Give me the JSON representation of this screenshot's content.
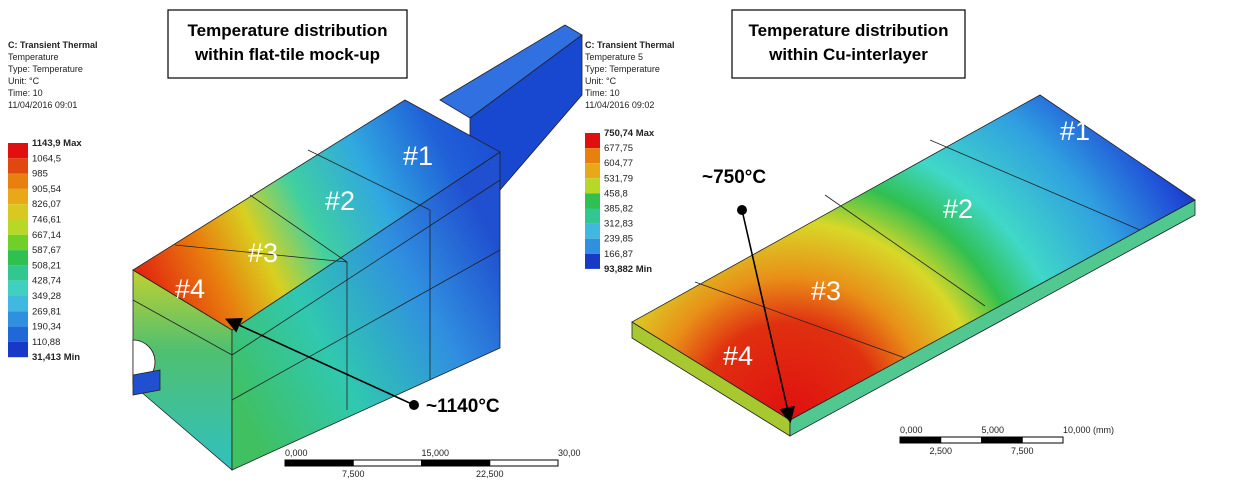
{
  "left": {
    "title": [
      "Temperature distribution",
      "within flat-tile mock-up"
    ],
    "legend_header": [
      "C: Transient Thermal",
      "Temperature",
      "Type: Temperature",
      "Unit: °C",
      "Time: 10",
      "11/04/2016 09:01"
    ],
    "legend_labels": [
      "1143,9 Max",
      "1064,5",
      "985",
      "905,54",
      "826,07",
      "746,61",
      "667,14",
      "587,67",
      "508,21",
      "428,74",
      "349,28",
      "269,81",
      "190,34",
      "110,88",
      "31,413 Min"
    ],
    "tiles": [
      "#1",
      "#2",
      "#3",
      "#4"
    ],
    "annotation": "~1140°C",
    "scale_top": [
      "0,000",
      "15,000",
      "30,00"
    ],
    "scale_bottom": [
      "7,500",
      "22,500"
    ]
  },
  "right": {
    "title": [
      "Temperature distribution",
      "within Cu-interlayer"
    ],
    "legend_header": [
      "C: Transient Thermal",
      "Temperature 5",
      "Type: Temperature",
      "Unit: °C",
      "Time: 10",
      "11/04/2016 09:02"
    ],
    "legend_labels": [
      "750,74 Max",
      "677,75",
      "604,77",
      "531,79",
      "458,8",
      "385,82",
      "312,83",
      "239,85",
      "166,87",
      "93,882 Min"
    ],
    "tiles": [
      "#1",
      "#2",
      "#3",
      "#4"
    ],
    "annotation": "~750°C",
    "scale_top": [
      "0,000",
      "5,000",
      "10,000 (mm)"
    ],
    "scale_bottom": [
      "2,500",
      "7,500"
    ]
  }
}
